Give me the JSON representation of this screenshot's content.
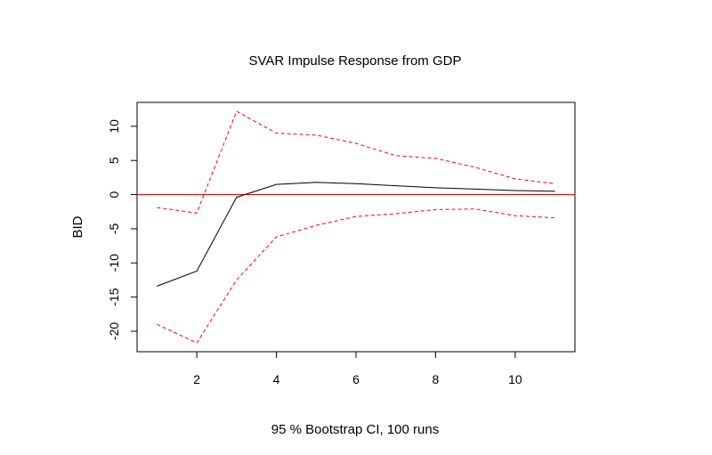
{
  "chart_data": {
    "type": "line",
    "title": "SVAR Impulse Response from GDP",
    "xlabel": "95 % Bootstrap CI,  100 runs",
    "ylabel": "BID",
    "xlim": [
      0.5,
      11.5
    ],
    "ylim": [
      -23,
      13.5
    ],
    "x_ticks": [
      2,
      4,
      6,
      8,
      10
    ],
    "y_ticks": [
      -20,
      -15,
      -10,
      -5,
      0,
      5,
      10
    ],
    "x": [
      1,
      2,
      3,
      4,
      5,
      6,
      7,
      8,
      9,
      10,
      11
    ],
    "series": [
      {
        "role": "response",
        "color": "#000000",
        "dash": "solid",
        "values": [
          -13.4,
          -11.2,
          -0.4,
          1.5,
          1.8,
          1.6,
          1.3,
          1.0,
          0.8,
          0.6,
          0.5
        ]
      },
      {
        "role": "upper",
        "color": "#ff0000",
        "dash": "dashed",
        "values": [
          -1.9,
          -2.7,
          12.2,
          9.0,
          8.7,
          7.5,
          5.7,
          5.3,
          4.0,
          2.3,
          1.6
        ]
      },
      {
        "role": "lower",
        "color": "#ff0000",
        "dash": "dashed",
        "values": [
          -19.0,
          -21.7,
          -12.5,
          -6.2,
          -4.5,
          -3.2,
          -2.8,
          -2.2,
          -2.1,
          -3.1,
          -3.4
        ]
      }
    ],
    "zero_line": {
      "y": 0,
      "color": "#ff0000"
    },
    "grid": false,
    "legend": "none"
  }
}
